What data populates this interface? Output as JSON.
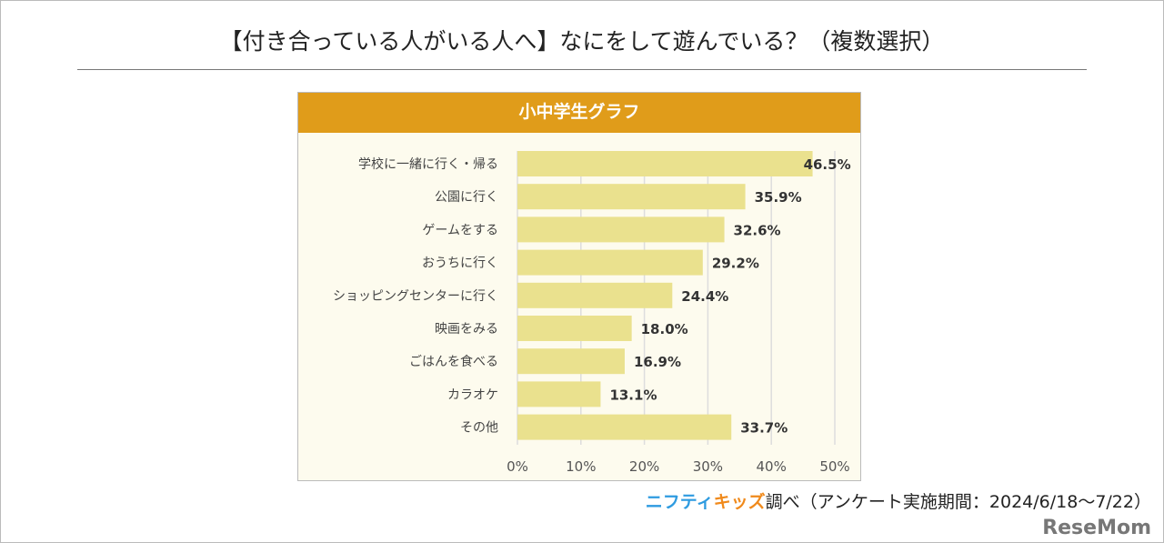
{
  "title": "【付き合っている人がいる人へ】なにをして遊んでいる？（複数選択）",
  "footer": {
    "brand_part1": "ニフティ",
    "brand_part2": "キッズ",
    "text": "調べ（アンケート実施期間：2024/6/18～7/22）"
  },
  "watermark": "ReseMom",
  "colors": {
    "header": "#E09C1A",
    "bar": "#EAE18E",
    "plot_bg": "#FDFBEE"
  },
  "chart_data": {
    "type": "bar",
    "orientation": "horizontal",
    "title": "小中学生グラフ",
    "categories": [
      "学校に一緒に行く・帰る",
      "公園に行く",
      "ゲームをする",
      "おうちに行く",
      "ショッピングセンターに行く",
      "映画をみる",
      "ごはんを食べる",
      "カラオケ",
      "その他"
    ],
    "values": [
      46.5,
      35.9,
      32.6,
      29.2,
      24.4,
      18.0,
      16.9,
      13.1,
      33.7
    ],
    "value_labels": [
      "46.5%",
      "35.9%",
      "32.6%",
      "29.2%",
      "24.4%",
      "18.0%",
      "16.9%",
      "13.1%",
      "33.7%"
    ],
    "xlim": [
      0,
      50
    ],
    "ticks": [
      "0%",
      "10%",
      "20%",
      "30%",
      "40%",
      "50%"
    ],
    "grid": true
  }
}
